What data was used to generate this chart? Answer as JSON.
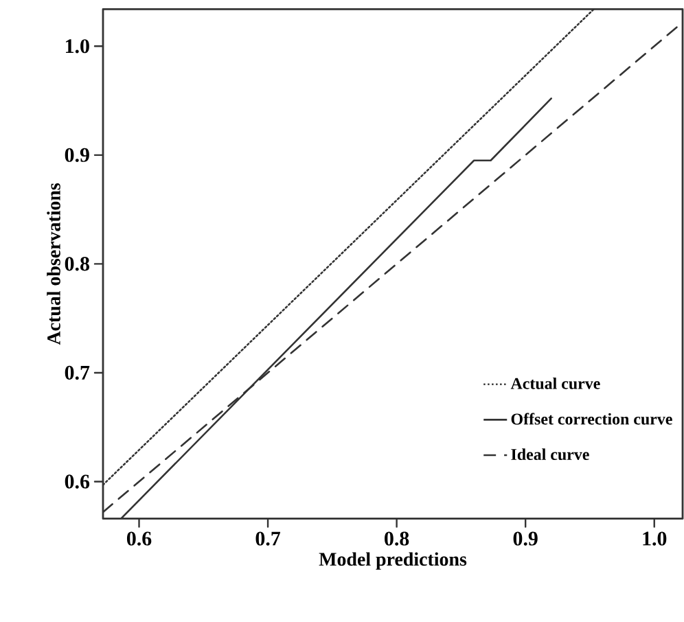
{
  "chart_data": {
    "type": "line",
    "xlabel": "Model predictions",
    "ylabel": "Actual observations",
    "xlim": [
      0.572,
      1.022
    ],
    "ylim": [
      0.566,
      1.034
    ],
    "xticks": [
      0.6,
      0.7,
      0.8,
      0.9,
      {
        "value": 1.0,
        "label": "1.0"
      }
    ],
    "yticks": [
      0.6,
      0.7,
      0.8,
      0.9,
      {
        "value": 1.0,
        "label": "1.0"
      }
    ],
    "grid": false,
    "legend": "bottom right",
    "marker": "none",
    "series": [
      {
        "name": "Actual curve",
        "color": "#333333",
        "line_style": "dotted",
        "x": [
          0.572,
          0.953
        ],
        "values": [
          0.597,
          1.034
        ]
      },
      {
        "name": "Offset correction curve",
        "color": "#333333",
        "line_style": "solid",
        "x": [
          0.586,
          0.86,
          0.873,
          0.92
        ],
        "values": [
          0.566,
          0.895,
          0.895,
          0.952
        ]
      },
      {
        "name": "Ideal curve",
        "color": "#333333",
        "line_style": "dashed",
        "x": [
          0.572,
          1.022
        ],
        "values": [
          0.572,
          1.022
        ]
      }
    ]
  }
}
